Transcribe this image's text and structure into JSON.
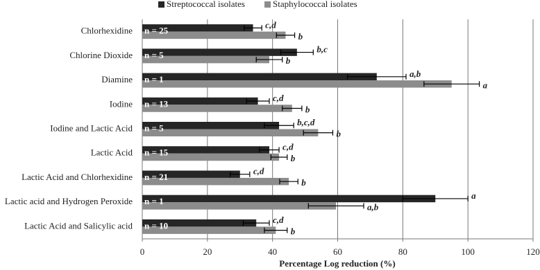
{
  "chart_data": {
    "type": "hbar",
    "xlabel": "Percentage Log reduction (%)",
    "categories": [
      "Chlorhexidine",
      "Chlorine Dioxide",
      "Diamine",
      "Iodine",
      "Iodine and Lactic Acid",
      "Lactic Acid",
      "Lactic Acid and Chlorhexidine",
      "Lactic acid and Hydrogen Peroxide",
      "Lactic Acid and Salicylic acid"
    ],
    "n_labels": [
      "n = 25",
      "n = 5",
      "n = 1",
      "n = 13",
      "n = 5",
      "n = 15",
      "n = 21",
      "n = 1",
      "n = 10"
    ],
    "series": [
      {
        "name": "Streptococcal isolates",
        "color": "#262626",
        "values": [
          34,
          47.5,
          72,
          35.5,
          42,
          39,
          30,
          90,
          35
        ],
        "errors": [
          2.7,
          5,
          9,
          3.5,
          4.5,
          3,
          3,
          10,
          4
        ],
        "letters": [
          "c,d",
          "b,c",
          "a,b",
          "c,d",
          "b,c,d",
          "c,d",
          "c,d",
          "a",
          "c,d"
        ]
      },
      {
        "name": "Staphylococcal isolates",
        "color": "#8c8c8c",
        "values": [
          44,
          39,
          95,
          46,
          54,
          42,
          45,
          59.5,
          41
        ],
        "errors": [
          2.8,
          4,
          8.5,
          3,
          4.5,
          2.5,
          2.8,
          8.5,
          3.5
        ],
        "letters": [
          "b",
          "b",
          "a",
          "b",
          "b",
          "b",
          "b",
          "a,b",
          "b"
        ]
      }
    ],
    "xlim": [
      0,
      120
    ],
    "xticks": [
      0,
      20,
      40,
      60,
      80,
      100,
      120
    ],
    "grid": true,
    "legend": "top"
  }
}
